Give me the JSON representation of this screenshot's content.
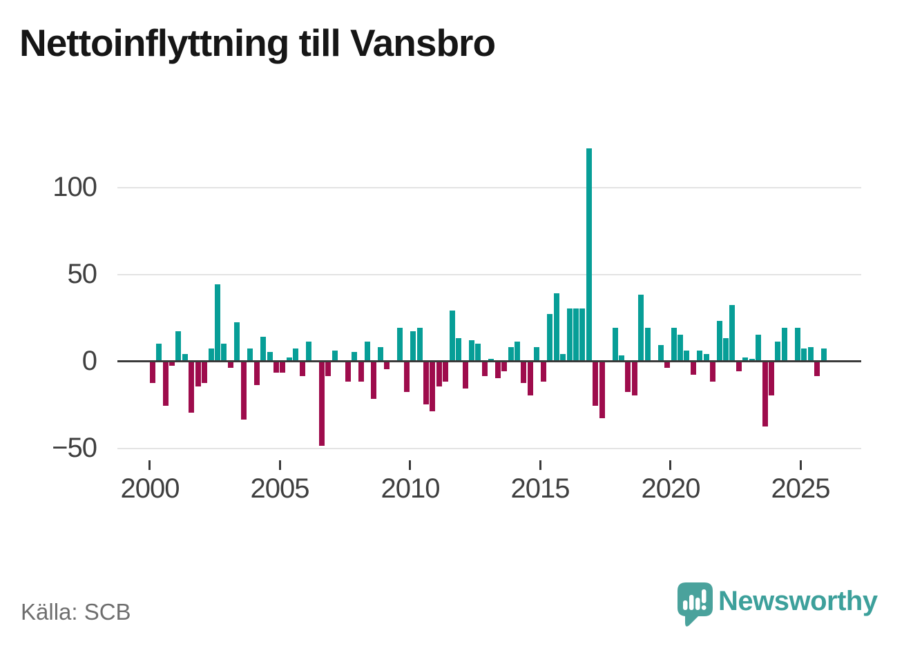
{
  "title": "Nettoinflyttning till Vansbro",
  "source": "Källa: SCB",
  "branding": {
    "name": "Newsworthy"
  },
  "colors": {
    "positive": "#079e97",
    "negative": "#9e0c4c",
    "axis": "#3a3a3a",
    "grid": "#e3e3e3",
    "tick_label": "#3f3f3f",
    "title_text": "#161616",
    "source_text": "#6e6e6e",
    "brand": "#3da09b"
  },
  "chart_data": {
    "type": "bar",
    "title": "Nettoinflyttning till Vansbro",
    "frequency": "quarterly",
    "x_start": "2000Q1",
    "x_end": "2025Q4",
    "values": [
      -12,
      10,
      -25,
      -2,
      17,
      4,
      -29,
      -14,
      -12,
      7,
      44,
      10,
      -3,
      22,
      -33,
      7,
      -13,
      14,
      5,
      -6,
      -6,
      2,
      7,
      -8,
      11,
      0,
      -48,
      -8,
      6,
      0,
      -11,
      5,
      -11,
      11,
      -21,
      8,
      -4,
      0,
      19,
      -17,
      17,
      19,
      -24,
      -28,
      -14,
      -11,
      29,
      13,
      -15,
      12,
      10,
      -8,
      1,
      -9,
      -5,
      8,
      11,
      -12,
      -19,
      8,
      -11,
      27,
      39,
      4,
      30,
      30,
      30,
      122,
      -25,
      -32,
      0,
      19,
      3,
      -17,
      -19,
      38,
      19,
      0,
      9,
      -3,
      19,
      15,
      6,
      -7,
      6,
      4,
      -11,
      23,
      13,
      32,
      -5,
      2,
      1,
      15,
      -37,
      -19,
      11,
      19,
      0,
      19,
      7,
      8,
      -8,
      7
    ],
    "x_tick_labels": [
      "2000",
      "2005",
      "2010",
      "2015",
      "2020",
      "2025"
    ],
    "y_tick_values": [
      100,
      50,
      0,
      -50
    ],
    "y_tick_labels": [
      "100",
      "50",
      "0",
      "−50"
    ],
    "ylim": [
      -60,
      135
    ],
    "grid": "horizontal",
    "legend": "none",
    "xlabel": "",
    "ylabel": ""
  }
}
